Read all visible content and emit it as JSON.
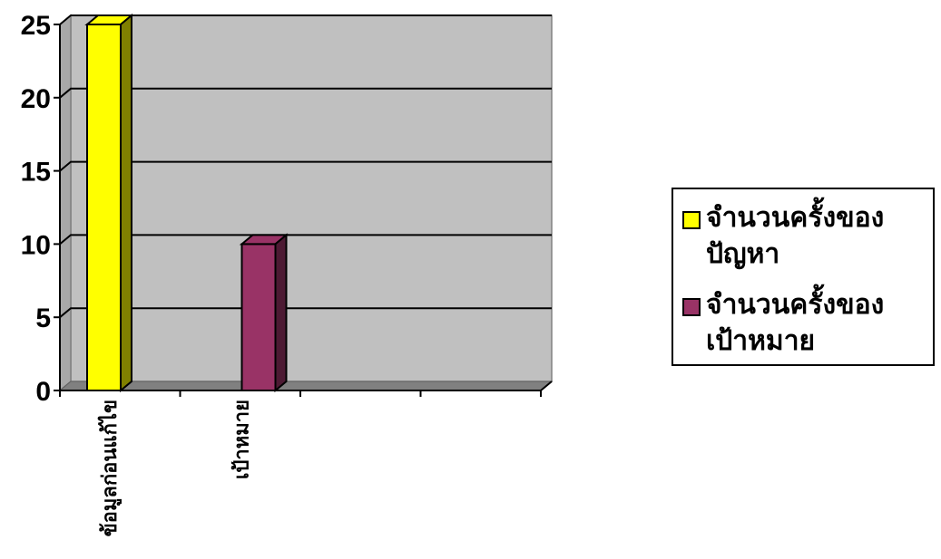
{
  "chart_data": {
    "type": "bar",
    "categories": [
      "ข้อมูลก่อนแก้ไข",
      "เป้าหมาย",
      "",
      ""
    ],
    "series": [
      {
        "name": "จำนวนครั้งของปัญหา",
        "values": [
          25,
          0,
          0,
          0
        ],
        "color": "#ffff00"
      },
      {
        "name": "จำนวนครั้งของเป้าหมาย",
        "values": [
          0,
          10,
          0,
          0
        ],
        "color": "#993366"
      }
    ],
    "yticks": [
      0,
      5,
      10,
      15,
      20,
      25
    ],
    "ylim": [
      0,
      25
    ],
    "grid": true,
    "legend_position": "right",
    "plot_background": "#c0c0c0"
  },
  "legend": {
    "items": [
      {
        "label": "จำนวนครั้งของปัญหา",
        "color": "#ffff00"
      },
      {
        "label": "จำนวนครั้งของเป้าหมาย",
        "color": "#993366"
      }
    ]
  }
}
